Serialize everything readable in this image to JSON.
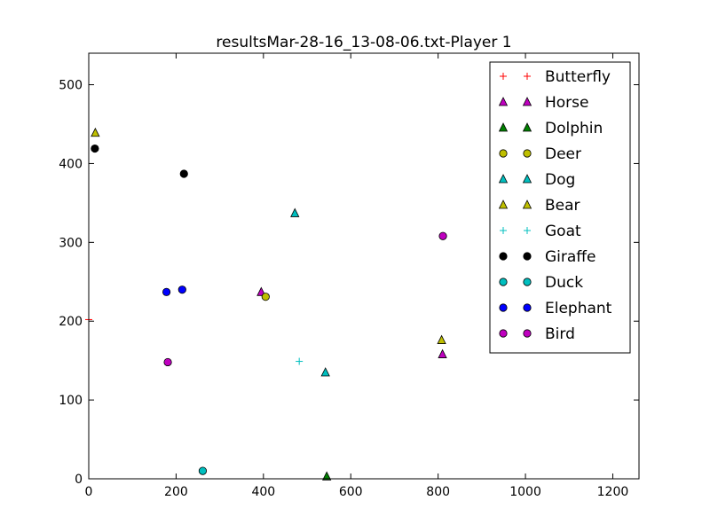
{
  "chart_data": {
    "type": "scatter",
    "title": "resultsMar-28-16_13-08-06.txt-Player 1",
    "xlabel": "",
    "ylabel": "",
    "xlim": [
      0,
      1260
    ],
    "ylim": [
      0,
      540
    ],
    "xticks": [
      0,
      200,
      400,
      600,
      800,
      1000,
      1200
    ],
    "yticks": [
      0,
      100,
      200,
      300,
      400,
      500
    ],
    "grid": false,
    "legend_position": "top-right",
    "series": [
      {
        "name": "Butterfly",
        "marker": "plus",
        "color": "#ff0000",
        "points": [
          [
            0,
            202
          ]
        ]
      },
      {
        "name": "Horse",
        "marker": "triangle",
        "color": "#bf00bf",
        "points": [
          [
            395,
            237
          ],
          [
            810,
            158
          ]
        ]
      },
      {
        "name": "Dolphin",
        "marker": "triangle",
        "color": "#008000",
        "points": [
          [
            545,
            3
          ]
        ]
      },
      {
        "name": "Deer",
        "marker": "circle",
        "color": "#bfbf00",
        "points": [
          [
            405,
            231
          ]
        ]
      },
      {
        "name": "Dog",
        "marker": "triangle",
        "color": "#00bfbf",
        "points": [
          [
            472,
            337
          ],
          [
            542,
            135
          ]
        ]
      },
      {
        "name": "Bear",
        "marker": "triangle",
        "color": "#bfbf00",
        "points": [
          [
            15,
            439
          ],
          [
            808,
            176
          ]
        ]
      },
      {
        "name": "Goat",
        "marker": "plus",
        "color": "#00bfbf",
        "points": [
          [
            482,
            149
          ]
        ]
      },
      {
        "name": "Giraffe",
        "marker": "circle",
        "color": "#000000",
        "points": [
          [
            14,
            419
          ],
          [
            218,
            387
          ]
        ]
      },
      {
        "name": "Duck",
        "marker": "circle",
        "color": "#00bfbf",
        "points": [
          [
            261,
            10
          ]
        ]
      },
      {
        "name": "Elephant",
        "marker": "circle",
        "color": "#0000ff",
        "points": [
          [
            178,
            237
          ],
          [
            214,
            240
          ]
        ]
      },
      {
        "name": "Bird",
        "marker": "circle",
        "color": "#bf00bf",
        "points": [
          [
            181,
            148
          ],
          [
            811,
            308
          ]
        ]
      }
    ]
  }
}
